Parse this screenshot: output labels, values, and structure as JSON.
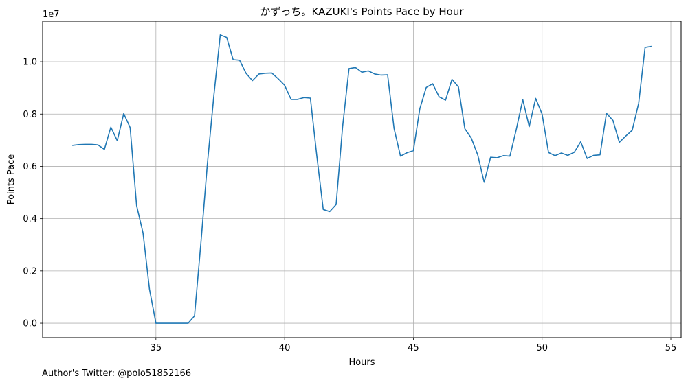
{
  "chart_data": {
    "type": "line",
    "title": "かずっち。KAZUKI's Points Pace by Hour",
    "xlabel": "Hours",
    "ylabel": "Points Pace",
    "y_multiplier_label": "1e7",
    "xlim": [
      30.6,
      55.4
    ],
    "ylim": [
      -550000,
      11550000
    ],
    "x_ticks": [
      35,
      40,
      45,
      50,
      55
    ],
    "y_ticks": [
      0,
      2000000,
      4000000,
      6000000,
      8000000,
      10000000
    ],
    "y_tick_labels": [
      "0.0",
      "0.2",
      "0.4",
      "0.6",
      "0.8",
      "1.0"
    ],
    "grid": true,
    "line_color": "#1f77b4",
    "series": [
      {
        "x": [
          31.75,
          32.0,
          32.25,
          32.5,
          32.75,
          33.0,
          33.25,
          33.5,
          33.75,
          34.0,
          34.25,
          34.5,
          34.75,
          35.0,
          35.25,
          35.5,
          35.75,
          36.0,
          36.25,
          36.5,
          36.75,
          37.0,
          37.25,
          37.5,
          37.75,
          38.0,
          38.25,
          38.5,
          38.75,
          39.0,
          39.25,
          39.5,
          39.75,
          40.0,
          40.25,
          40.5,
          40.75,
          41.0,
          41.25,
          41.5,
          41.75,
          42.0,
          42.25,
          42.5,
          42.75,
          43.0,
          43.25,
          43.5,
          43.75,
          44.0,
          44.25,
          44.5,
          44.75,
          45.0,
          45.25,
          45.5,
          45.75,
          46.0,
          46.25,
          46.5,
          46.75,
          47.0,
          47.25,
          47.5,
          47.75,
          48.0,
          48.25,
          48.5,
          48.75,
          49.0,
          49.25,
          49.5,
          49.75,
          50.0,
          50.25,
          50.5,
          50.75,
          51.0,
          51.25,
          51.5,
          51.75,
          52.0,
          52.25,
          52.5,
          52.75,
          53.0,
          53.25,
          53.5,
          53.75,
          54.0,
          54.25
        ],
        "y": [
          6800000,
          6830000,
          6840000,
          6840000,
          6820000,
          6650000,
          7500000,
          6980000,
          8020000,
          7480000,
          4500000,
          3450000,
          1300000,
          0,
          0,
          0,
          0,
          0,
          0,
          280000,
          3100000,
          6100000,
          8700000,
          11030000,
          10930000,
          10080000,
          10060000,
          9560000,
          9280000,
          9530000,
          9560000,
          9570000,
          9350000,
          9100000,
          8560000,
          8560000,
          8630000,
          8610000,
          6400000,
          4350000,
          4270000,
          4540000,
          7500000,
          9740000,
          9780000,
          9600000,
          9650000,
          9530000,
          9490000,
          9500000,
          7450000,
          6390000,
          6520000,
          6600000,
          8200000,
          9020000,
          9160000,
          8660000,
          8530000,
          9330000,
          9040000,
          7440000,
          7080000,
          6440000,
          5390000,
          6350000,
          6330000,
          6410000,
          6390000,
          7420000,
          8550000,
          7520000,
          8600000,
          8000000,
          6530000,
          6410000,
          6510000,
          6420000,
          6540000,
          6940000,
          6300000,
          6420000,
          6440000,
          8030000,
          7760000,
          6920000,
          7160000,
          7380000,
          8410000,
          10550000,
          10590000
        ]
      }
    ]
  },
  "footer": {
    "text": "Author's Twitter: @polo51852166"
  }
}
